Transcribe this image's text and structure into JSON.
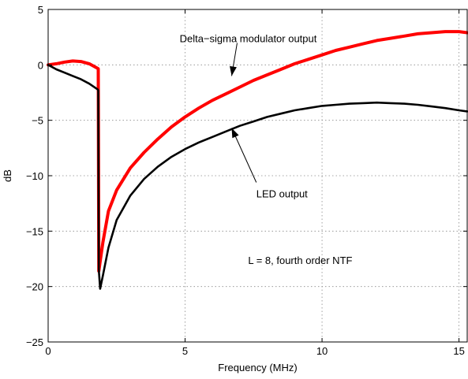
{
  "chart_data": {
    "type": "line",
    "title": "",
    "xlabel": "Frequency (MHz)",
    "ylabel": "dB",
    "xlim": [
      0,
      15.3
    ],
    "ylim": [
      -25,
      5
    ],
    "xticks": [
      0,
      5,
      10,
      15
    ],
    "yticks": [
      5,
      0,
      -5,
      -10,
      -15,
      -20,
      -25
    ],
    "grid": true,
    "legend": "none",
    "series": [
      {
        "color": "#ff0000",
        "points": [
          [
            0,
            0
          ],
          [
            0.3,
            0.1
          ],
          [
            0.6,
            0.25
          ],
          [
            0.9,
            0.35
          ],
          [
            1.2,
            0.3
          ],
          [
            1.5,
            0.1
          ],
          [
            1.8,
            -0.3
          ],
          [
            1.83,
            -0.35
          ],
          [
            1.85,
            -18.6
          ],
          [
            2.0,
            -16.0
          ],
          [
            2.2,
            -13.2
          ],
          [
            2.5,
            -11.3
          ],
          [
            3.0,
            -9.3
          ],
          [
            3.5,
            -7.9
          ],
          [
            4.0,
            -6.7
          ],
          [
            4.5,
            -5.6
          ],
          [
            5.0,
            -4.7
          ],
          [
            5.5,
            -3.9
          ],
          [
            6.0,
            -3.2
          ],
          [
            6.5,
            -2.6
          ],
          [
            7.0,
            -2.0
          ],
          [
            7.5,
            -1.4
          ],
          [
            8.0,
            -0.9
          ],
          [
            8.5,
            -0.4
          ],
          [
            9.0,
            0.1
          ],
          [
            9.5,
            0.5
          ],
          [
            10.0,
            0.9
          ],
          [
            10.5,
            1.3
          ],
          [
            11.0,
            1.6
          ],
          [
            11.5,
            1.9
          ],
          [
            12.0,
            2.2
          ],
          [
            12.5,
            2.4
          ],
          [
            13.0,
            2.6
          ],
          [
            13.5,
            2.8
          ],
          [
            14.0,
            2.9
          ],
          [
            14.5,
            3.0
          ],
          [
            15.0,
            3.0
          ],
          [
            15.3,
            2.9
          ]
        ]
      },
      {
        "color": "#000000",
        "points": [
          [
            0,
            0
          ],
          [
            0.3,
            -0.4
          ],
          [
            0.6,
            -0.7
          ],
          [
            0.9,
            -1.0
          ],
          [
            1.2,
            -1.3
          ],
          [
            1.5,
            -1.7
          ],
          [
            1.8,
            -2.2
          ],
          [
            1.83,
            -2.3
          ],
          [
            1.85,
            -18.5
          ],
          [
            1.9,
            -20.2
          ],
          [
            2.0,
            -19.0
          ],
          [
            2.2,
            -16.5
          ],
          [
            2.5,
            -14.0
          ],
          [
            3.0,
            -11.8
          ],
          [
            3.5,
            -10.3
          ],
          [
            4.0,
            -9.2
          ],
          [
            4.5,
            -8.3
          ],
          [
            5.0,
            -7.6
          ],
          [
            5.5,
            -7.0
          ],
          [
            6.0,
            -6.5
          ],
          [
            6.5,
            -6.0
          ],
          [
            7.0,
            -5.5
          ],
          [
            7.5,
            -5.1
          ],
          [
            8.0,
            -4.7
          ],
          [
            8.5,
            -4.4
          ],
          [
            9.0,
            -4.1
          ],
          [
            9.5,
            -3.9
          ],
          [
            10.0,
            -3.7
          ],
          [
            10.5,
            -3.6
          ],
          [
            11.0,
            -3.5
          ],
          [
            11.5,
            -3.45
          ],
          [
            12.0,
            -3.4
          ],
          [
            12.5,
            -3.45
          ],
          [
            13.0,
            -3.5
          ],
          [
            13.5,
            -3.6
          ],
          [
            14.0,
            -3.75
          ],
          [
            14.5,
            -3.9
          ],
          [
            15.0,
            -4.1
          ],
          [
            15.3,
            -4.2
          ]
        ]
      }
    ],
    "annotations": [
      {
        "text": "Delta−sigma modulator output",
        "x": 4.8,
        "y": 2.4,
        "arrow_to": [
          6.7,
          -1.0
        ],
        "text_anchor": "start"
      },
      {
        "text": "LED output",
        "x": 7.6,
        "y": -11.6,
        "arrow_to": [
          6.7,
          -5.7
        ],
        "text_anchor": "start"
      },
      {
        "text": "L = 8, fourth order NTF",
        "x": 7.3,
        "y": -17.6,
        "text_anchor": "start"
      }
    ]
  }
}
